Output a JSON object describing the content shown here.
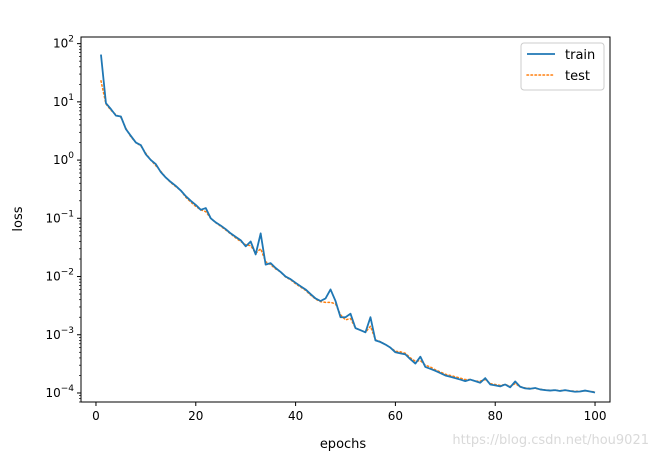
{
  "chart_data": {
    "type": "line",
    "xlabel": "epochs",
    "ylabel": "loss",
    "yscale": "log",
    "xlim": [
      -3,
      103
    ],
    "ylim": [
      7e-05,
      130
    ],
    "xticks": [
      0,
      20,
      40,
      60,
      80,
      100
    ],
    "yticks": [
      0.0001,
      0.001,
      0.01,
      0.1,
      1,
      10,
      100
    ],
    "ytick_labels": [
      {
        "base": "10",
        "exp": "−4"
      },
      {
        "base": "10",
        "exp": "−3"
      },
      {
        "base": "10",
        "exp": "−2"
      },
      {
        "base": "10",
        "exp": "−1"
      },
      {
        "base": "10",
        "exp": "0"
      },
      {
        "base": "10",
        "exp": "1"
      },
      {
        "base": "10",
        "exp": "2"
      }
    ],
    "grid": false,
    "legend_position": "top-right",
    "x": [
      1,
      2,
      3,
      4,
      5,
      6,
      7,
      8,
      9,
      10,
      11,
      12,
      13,
      14,
      15,
      16,
      17,
      18,
      19,
      20,
      21,
      22,
      23,
      24,
      25,
      26,
      27,
      28,
      29,
      30,
      31,
      32,
      33,
      34,
      35,
      36,
      37,
      38,
      39,
      40,
      41,
      42,
      43,
      44,
      45,
      46,
      47,
      48,
      49,
      50,
      51,
      52,
      53,
      54,
      55,
      56,
      57,
      58,
      59,
      60,
      61,
      62,
      63,
      64,
      65,
      66,
      67,
      68,
      69,
      70,
      71,
      72,
      73,
      74,
      75,
      76,
      77,
      78,
      79,
      80,
      81,
      82,
      83,
      84,
      85,
      86,
      87,
      88,
      89,
      90,
      91,
      92,
      93,
      94,
      95,
      96,
      97,
      98,
      99,
      100
    ],
    "series": [
      {
        "name": "train",
        "color": "#1f77b4",
        "style": "solid",
        "values": [
          65,
          9.5,
          7.5,
          5.8,
          5.6,
          3.4,
          2.6,
          2.0,
          1.8,
          1.25,
          1.0,
          0.85,
          0.62,
          0.5,
          0.42,
          0.36,
          0.3,
          0.24,
          0.2,
          0.17,
          0.14,
          0.15,
          0.1,
          0.085,
          0.075,
          0.065,
          0.055,
          0.048,
          0.042,
          0.033,
          0.04,
          0.024,
          0.055,
          0.016,
          0.017,
          0.014,
          0.012,
          0.01,
          0.009,
          0.0078,
          0.0068,
          0.006,
          0.005,
          0.0042,
          0.0038,
          0.0042,
          0.006,
          0.0038,
          0.002,
          0.002,
          0.0023,
          0.0013,
          0.0012,
          0.0011,
          0.002,
          0.0008,
          0.00075,
          0.00068,
          0.0006,
          0.0005,
          0.00048,
          0.00046,
          0.00038,
          0.00032,
          0.00042,
          0.00028,
          0.00026,
          0.00024,
          0.00022,
          0.0002,
          0.00019,
          0.00018,
          0.00017,
          0.00016,
          0.00017,
          0.00016,
          0.00015,
          0.00018,
          0.00014,
          0.000135,
          0.00013,
          0.00014,
          0.000125,
          0.000158,
          0.000128,
          0.00012,
          0.000118,
          0.000122,
          0.000115,
          0.000112,
          0.00011,
          0.000112,
          0.000108,
          0.000112,
          0.000108,
          0.000105,
          0.000106,
          0.00011,
          0.000106,
          0.000102
        ]
      },
      {
        "name": "test",
        "color": "#ff7f0e",
        "style": "dotted",
        "values": [
          23,
          9.2,
          7.2,
          6.0,
          5.4,
          3.5,
          2.5,
          2.0,
          1.75,
          1.3,
          1.0,
          0.8,
          0.64,
          0.5,
          0.41,
          0.35,
          0.3,
          0.23,
          0.19,
          0.16,
          0.14,
          0.13,
          0.1,
          0.084,
          0.073,
          0.063,
          0.054,
          0.046,
          0.04,
          0.035,
          0.034,
          0.025,
          0.03,
          0.018,
          0.016,
          0.0135,
          0.012,
          0.0098,
          0.0088,
          0.0075,
          0.0066,
          0.0058,
          0.0048,
          0.0041,
          0.0037,
          0.0036,
          0.0036,
          0.0034,
          0.0022,
          0.0018,
          0.0019,
          0.0013,
          0.0012,
          0.0011,
          0.0014,
          0.00082,
          0.00076,
          0.00068,
          0.0006,
          0.00052,
          0.00051,
          0.00048,
          0.0004,
          0.00035,
          0.00036,
          0.0003,
          0.00028,
          0.00025,
          0.00023,
          0.00021,
          0.0002,
          0.00019,
          0.00018,
          0.00017,
          0.00017,
          0.00016,
          0.00016,
          0.00017,
          0.000145,
          0.00014,
          0.000135,
          0.00014,
          0.00013,
          0.000145,
          0.000128,
          0.000122,
          0.00012,
          0.00012,
          0.000116,
          0.000113,
          0.000111,
          0.000112,
          0.00011,
          0.000111,
          0.000109,
          0.000107,
          0.000107,
          0.000109,
          0.000107,
          0.000104
        ]
      }
    ]
  },
  "watermark": "https://blog.csdn.net/hou9021"
}
